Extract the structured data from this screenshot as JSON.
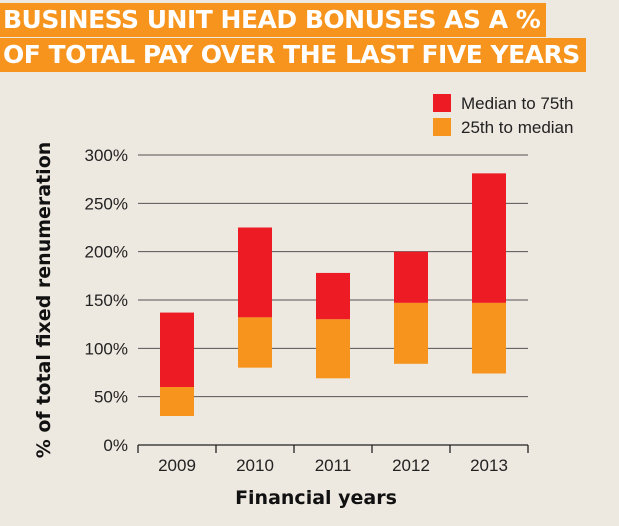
{
  "title": {
    "line1": "BUSINESS UNIT HEAD BONUSES AS A %",
    "line2": "OF TOTAL PAY OVER THE LAST FIVE YEARS"
  },
  "colors": {
    "title_bg": "#f7941d",
    "upper": "#ed1c24",
    "lower": "#f7941d",
    "grid": "#555555",
    "background": "#ede8e0"
  },
  "chart_data": {
    "type": "bar",
    "stacked_floating": true,
    "xlabel": "Financial years",
    "ylabel": "% of total fixed renumeration",
    "ylim": [
      0,
      300
    ],
    "yticks": [
      0,
      50,
      100,
      150,
      200,
      250,
      300
    ],
    "ytick_labels": [
      "0%",
      "50%",
      "100%",
      "150%",
      "200%",
      "250%",
      "300%"
    ],
    "grid": true,
    "legend_position": "top-right",
    "categories": [
      "2009",
      "2010",
      "2011",
      "2012",
      "2013"
    ],
    "series": [
      {
        "name": "Median to 75th",
        "color": "#ed1c24",
        "ranges": [
          [
            60,
            137
          ],
          [
            132,
            225
          ],
          [
            130,
            178
          ],
          [
            147,
            200
          ],
          [
            147,
            281
          ]
        ]
      },
      {
        "name": "25th to median",
        "color": "#f7941d",
        "ranges": [
          [
            30,
            60
          ],
          [
            80,
            132
          ],
          [
            69,
            130
          ],
          [
            84,
            147
          ],
          [
            74,
            147
          ]
        ]
      }
    ]
  }
}
